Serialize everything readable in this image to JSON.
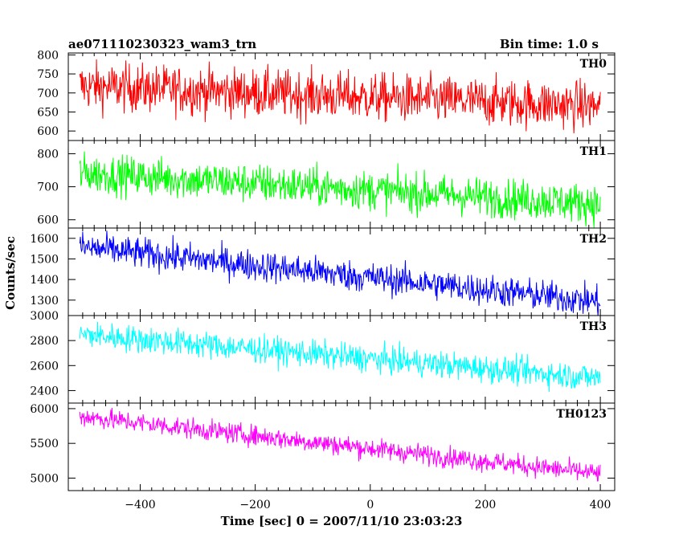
{
  "chart_data": {
    "type": "line",
    "title_left": "ae071110230323_wam3_trn",
    "title_right": "Bin time: 1.0 s",
    "xlabel": "Time [sec] 0 = 2007/11/10 23:03:23",
    "ylabel": "Counts/sec",
    "xlim": [
      -525,
      425
    ],
    "x_ticks": [
      -400,
      -200,
      0,
      200,
      400
    ],
    "x_tick_labels": [
      "−400",
      "−200",
      "0",
      "200",
      "400"
    ],
    "x_range": [
      -505,
      400
    ],
    "grid": false,
    "panels": [
      {
        "name": "TH0",
        "color": "#ff0000",
        "ylim": [
          575,
          805
        ],
        "y_ticks": [
          600,
          650,
          700,
          750,
          800
        ],
        "y_tick_labels": [
          "600",
          "650",
          "700",
          "750",
          "800"
        ],
        "start": 718,
        "end": 665,
        "noise": 32
      },
      {
        "name": "TH1",
        "color": "#00ff00",
        "ylim": [
          575,
          840
        ],
        "y_ticks": [
          600,
          700,
          800
        ],
        "y_tick_labels": [
          "600",
          "700",
          "800"
        ],
        "start": 742,
        "end": 648,
        "noise": 30
      },
      {
        "name": "TH2",
        "color": "#0000ff",
        "ylim": [
          1225,
          1650
        ],
        "y_ticks": [
          1300,
          1400,
          1500,
          1600
        ],
        "y_tick_labels": [
          "1300",
          "1400",
          "1500",
          "1600"
        ],
        "start": 1558,
        "end": 1292,
        "noise": 38
      },
      {
        "name": "TH3",
        "color": "#00ffff",
        "ylim": [
          2300,
          3000
        ],
        "y_ticks": [
          2400,
          2600,
          2800,
          3000
        ],
        "y_tick_labels": [
          "2400",
          "2600",
          "2800",
          "3000"
        ],
        "start": 2850,
        "end": 2500,
        "noise": 55
      },
      {
        "name": "TH0123",
        "color": "#ff00ff",
        "ylim": [
          4820,
          6080
        ],
        "y_ticks": [
          5000,
          5500,
          6000
        ],
        "y_tick_labels": [
          "5000",
          "5500",
          "6000"
        ],
        "start": 5890,
        "end": 5060,
        "noise": 75
      }
    ]
  }
}
